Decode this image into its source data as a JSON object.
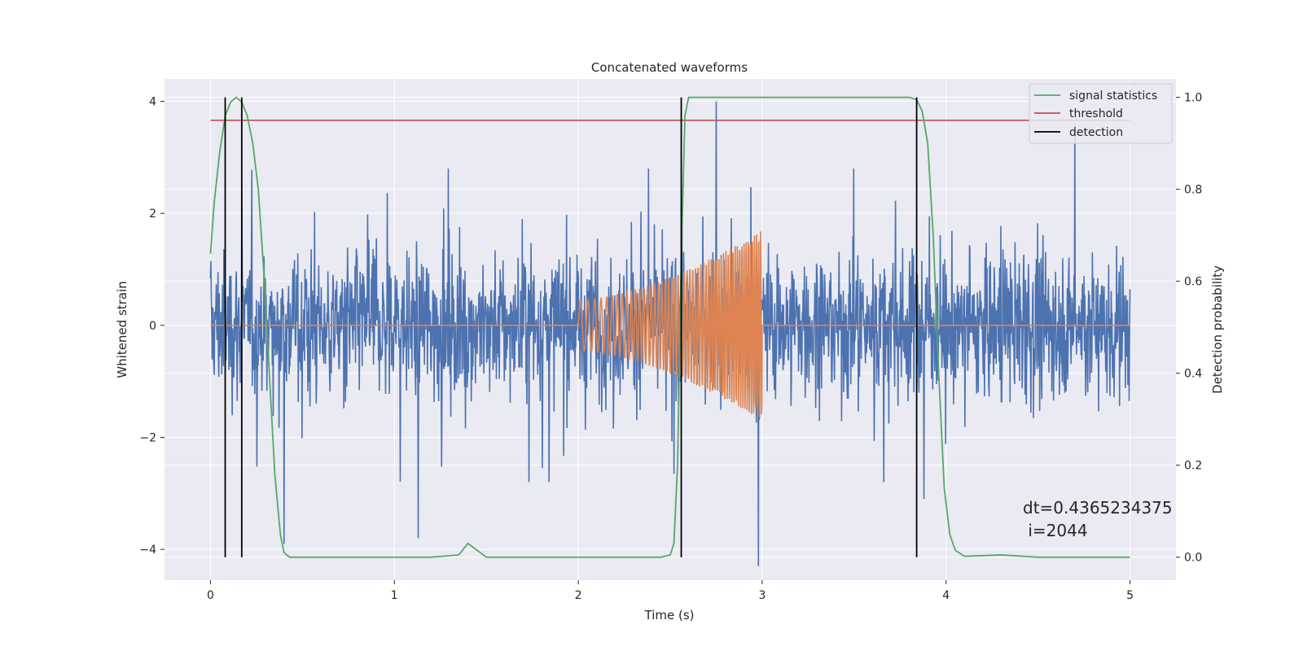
{
  "chart_data": {
    "type": "line",
    "title": "Concatenated waveforms",
    "xlabel": "Time (s)",
    "ylabel": "Whitened strain",
    "ylabel_right": "Detection probability",
    "xlim": [
      -0.25,
      5.25
    ],
    "ylim": [
      -4.55,
      4.4
    ],
    "ylim_right": [
      -0.05,
      1.04
    ],
    "xticks": [
      0,
      1,
      2,
      3,
      4,
      5
    ],
    "xtick_labels": [
      "0",
      "1",
      "2",
      "3",
      "4",
      "5"
    ],
    "yticks": [
      -4,
      -2,
      0,
      2,
      4
    ],
    "ytick_labels": [
      "−4",
      "−2",
      "0",
      "2",
      "4"
    ],
    "yticks_right": [
      0.0,
      0.2,
      0.4,
      0.6,
      0.8,
      1.0
    ],
    "ytick_labels_right": [
      "0.0",
      "0.2",
      "0.4",
      "0.6",
      "0.8",
      "1.0"
    ],
    "grid": true,
    "legend_position": "top-right",
    "colors": {
      "noise": "#4c72b0",
      "injection": "#dd8452",
      "statistic": "#55a868",
      "threshold": "#c44e52",
      "detection": "#000000",
      "axes_bg": "#eaeaf2",
      "grid": "#ffffff"
    },
    "noise": {
      "x_range": [
        0,
        5
      ],
      "amplitude_envelope": 2.8,
      "peak_spikes": [
        [
          0.17,
          2.4
        ],
        [
          0.4,
          -3.9
        ],
        [
          1.13,
          -3.8
        ],
        [
          2.75,
          4.0
        ],
        [
          2.98,
          -4.3
        ],
        [
          3.88,
          -3.1
        ],
        [
          4.7,
          3.6
        ]
      ]
    },
    "injection": {
      "x_start": 2.0,
      "x_end": 3.0,
      "amplitude_start": 0.45,
      "amplitude_end": 1.7,
      "flat_value": 0
    },
    "threshold": {
      "value": 0.95,
      "x": [
        0,
        5
      ]
    },
    "statistic": {
      "axis": "right",
      "x": [
        0.0,
        0.02,
        0.05,
        0.08,
        0.11,
        0.14,
        0.17,
        0.2,
        0.23,
        0.26,
        0.29,
        0.32,
        0.35,
        0.38,
        0.4,
        0.43,
        0.5,
        0.8,
        1.2,
        1.35,
        1.4,
        1.45,
        1.5,
        1.6,
        2.0,
        2.3,
        2.45,
        2.5,
        2.52,
        2.54,
        2.56,
        2.58,
        2.6,
        2.65,
        3.0,
        3.5,
        3.8,
        3.84,
        3.87,
        3.9,
        3.93,
        3.96,
        3.99,
        4.02,
        4.05,
        4.1,
        4.3,
        4.5,
        5.0
      ],
      "values": [
        0.66,
        0.77,
        0.88,
        0.96,
        0.99,
        1.0,
        0.99,
        0.96,
        0.9,
        0.8,
        0.62,
        0.4,
        0.18,
        0.05,
        0.01,
        0.0,
        0.0,
        0.0,
        0.0,
        0.005,
        0.03,
        0.015,
        0.0,
        0.0,
        0.0,
        0.0,
        0.0,
        0.005,
        0.03,
        0.2,
        0.65,
        0.96,
        1.0,
        1.0,
        1.0,
        1.0,
        1.0,
        0.995,
        0.97,
        0.9,
        0.7,
        0.4,
        0.15,
        0.05,
        0.015,
        0.002,
        0.005,
        0.0,
        0.0
      ]
    },
    "detections": [
      0.08,
      0.17,
      2.56,
      3.84
    ],
    "legend": [
      "signal statistics",
      "threshold",
      "detection"
    ],
    "annotation": [
      "dt=0.4365234375",
      " i=2044"
    ]
  }
}
